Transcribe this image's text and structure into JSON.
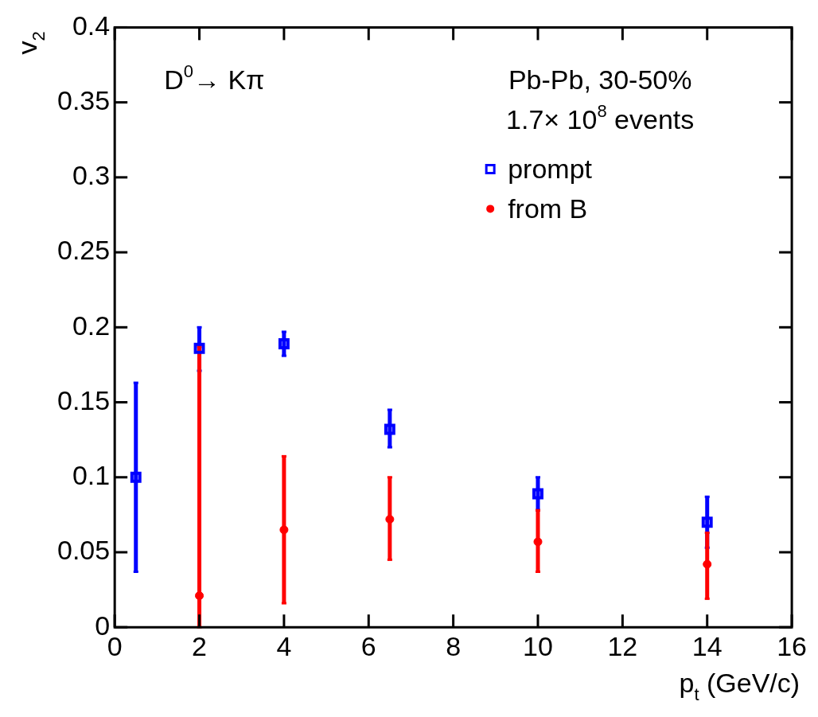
{
  "chart_data": {
    "type": "scatter",
    "xlabel": "p$_{t}$ (GeV/c)",
    "ylabel": "v$_{2}$",
    "xlim": [
      0,
      16
    ],
    "xticks": [
      0,
      2,
      4,
      6,
      8,
      10,
      12,
      14,
      16
    ],
    "ylim": [
      0,
      0.4
    ],
    "yticks": [
      0,
      0.05,
      0.1,
      0.15,
      0.2,
      0.25,
      0.3,
      0.35,
      0.4
    ],
    "grid": false,
    "legend": "top right",
    "annotations": [
      "D$^{0}$→ Kπ",
      "Pb-Pb, 30-50%",
      "1.7× 10$^{8}$ events"
    ],
    "series": [
      {
        "name": "prompt",
        "color": "#0000ff",
        "marker": "square",
        "x": [
          0.5,
          2,
          4,
          6.5,
          10,
          14
        ],
        "values": [
          0.1,
          0.186,
          0.189,
          0.132,
          0.089,
          0.07
        ],
        "errors": [
          [
            0.037,
            0.163
          ],
          [
            0.171,
            0.2
          ],
          [
            0.181,
            0.197
          ],
          [
            0.12,
            0.145
          ],
          [
            0.078,
            0.1
          ],
          [
            0.053,
            0.087
          ]
        ]
      },
      {
        "name": "from B",
        "color": "#ff0000",
        "marker": "circle",
        "x": [
          2,
          4,
          6.5,
          10,
          14
        ],
        "values": [
          0.021,
          0.065,
          0.072,
          0.057,
          0.042
        ],
        "errors": [
          [
            0,
            0.187
          ],
          [
            0.016,
            0.114
          ],
          [
            0.045,
            0.1
          ],
          [
            0.037,
            0.078
          ],
          [
            0.019,
            0.063
          ]
        ]
      }
    ]
  }
}
